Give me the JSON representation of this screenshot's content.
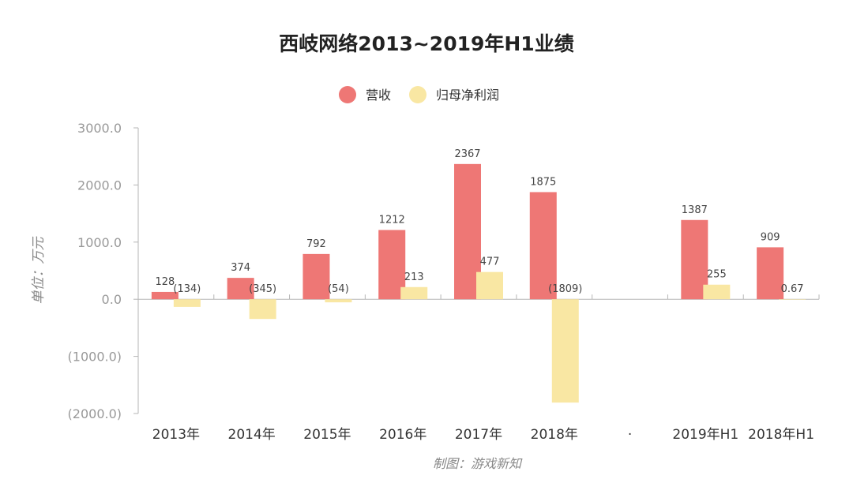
{
  "chart_data": {
    "type": "bar",
    "title": "西岐网络2013~2019年H1业绩",
    "ylabel": "单位：万元",
    "source": "制图：游戏新知",
    "ylim": [
      -2000,
      3000
    ],
    "ytick_values": [
      3000,
      2000,
      1000,
      0,
      -1000,
      -2000
    ],
    "ytick_labels": [
      "3000.0",
      "2000.0",
      "1000.0",
      "0.0",
      "(1000.0)",
      "(2000.0)"
    ],
    "categories": [
      "2013年",
      "2014年",
      "2015年",
      "2016年",
      "2017年",
      "2018年",
      "·",
      "2019年H1",
      "2018年H1"
    ],
    "legend_position": "top-center",
    "series": [
      {
        "name": "营收",
        "color": "#ee7775",
        "values": [
          128,
          374,
          792,
          1212,
          2367,
          1875,
          null,
          1387,
          909
        ],
        "labels": [
          "128",
          "374",
          "792",
          "1212",
          "2367",
          "1875",
          "",
          "1387",
          "909"
        ]
      },
      {
        "name": "归母净利润",
        "color": "#f9e7a3",
        "values": [
          -134,
          -345,
          -54,
          213,
          477,
          -1809,
          null,
          255,
          0.67
        ],
        "labels": [
          "(134)",
          "(345)",
          "(54)",
          "213",
          "477",
          "(1809)",
          "",
          "255",
          "0.67"
        ]
      }
    ]
  }
}
